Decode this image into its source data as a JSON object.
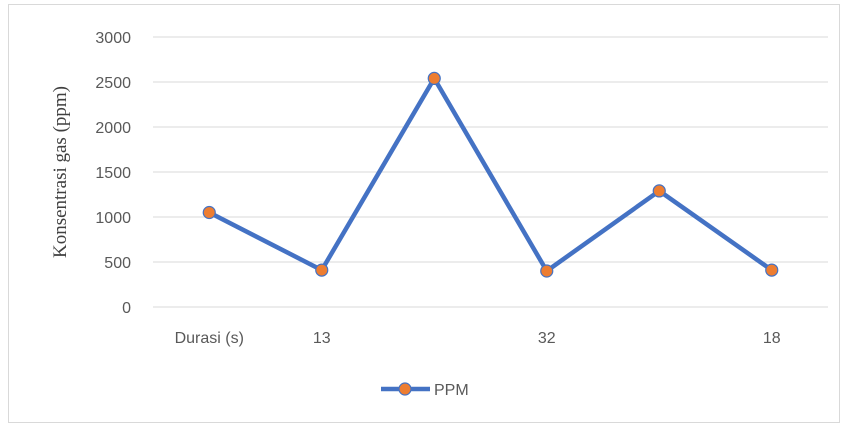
{
  "chart_data": {
    "type": "line",
    "title": "",
    "xlabel": "",
    "ylabel": "Konsentrasi gas (ppm)",
    "categories": [
      "Durasi (s)",
      "13",
      "",
      "32",
      "",
      "18"
    ],
    "series": [
      {
        "name": "PPM",
        "values": [
          1050,
          410,
          2540,
          400,
          1290,
          410
        ]
      }
    ],
    "ylim": [
      0,
      3000
    ],
    "yticks": [
      "0",
      "500",
      "1000",
      "1500",
      "2000",
      "2500",
      "3000"
    ],
    "grid": true,
    "legend_position": "bottom",
    "colors": {
      "line": "#4472c4",
      "marker_fill": "#ed7d31",
      "grid": "#d9d9d9"
    }
  }
}
